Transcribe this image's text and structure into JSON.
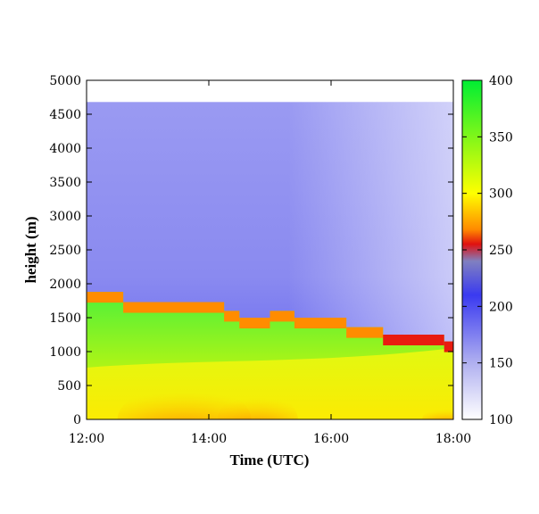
{
  "chart_data": {
    "type": "heatmap",
    "title": "",
    "xlabel": "Time (UTC)",
    "ylabel": "height (m)",
    "x_ticks": [
      "12:00",
      "14:00",
      "16:00",
      "18:00"
    ],
    "x_range_hours": [
      12,
      18
    ],
    "y_ticks": [
      "0",
      "500",
      "1000",
      "1500",
      "2000",
      "2500",
      "3000",
      "3500",
      "4000",
      "4500",
      "5000"
    ],
    "ylim": [
      0,
      5000
    ],
    "data_top_height": 4680,
    "colorbar": {
      "ticks": [
        "100",
        "150",
        "200",
        "250",
        "300",
        "350",
        "400"
      ],
      "range": [
        100,
        400
      ],
      "stops": [
        {
          "value": 100,
          "color": "#ffffff"
        },
        {
          "value": 150,
          "color": "#b0b0f0"
        },
        {
          "value": 210,
          "color": "#3a3af0"
        },
        {
          "value": 240,
          "color": "#8080c0"
        },
        {
          "value": 255,
          "color": "#e01010"
        },
        {
          "value": 268,
          "color": "#ff8a00"
        },
        {
          "value": 300,
          "color": "#ffff00"
        },
        {
          "value": 400,
          "color": "#00ee33"
        }
      ]
    },
    "mixed_layer_top": [
      {
        "start": 12.0,
        "end": 12.6,
        "height": 1880
      },
      {
        "start": 12.6,
        "end": 14.25,
        "height": 1730
      },
      {
        "start": 14.25,
        "end": 14.5,
        "height": 1600
      },
      {
        "start": 14.5,
        "end": 15.0,
        "height": 1500
      },
      {
        "start": 15.0,
        "end": 15.4,
        "height": 1600
      },
      {
        "start": 15.4,
        "end": 16.25,
        "height": 1500
      },
      {
        "start": 16.25,
        "end": 16.85,
        "height": 1360
      },
      {
        "start": 16.85,
        "end": 17.85,
        "height": 1250
      },
      {
        "start": 17.85,
        "end": 18.0,
        "height": 1150
      }
    ]
  }
}
